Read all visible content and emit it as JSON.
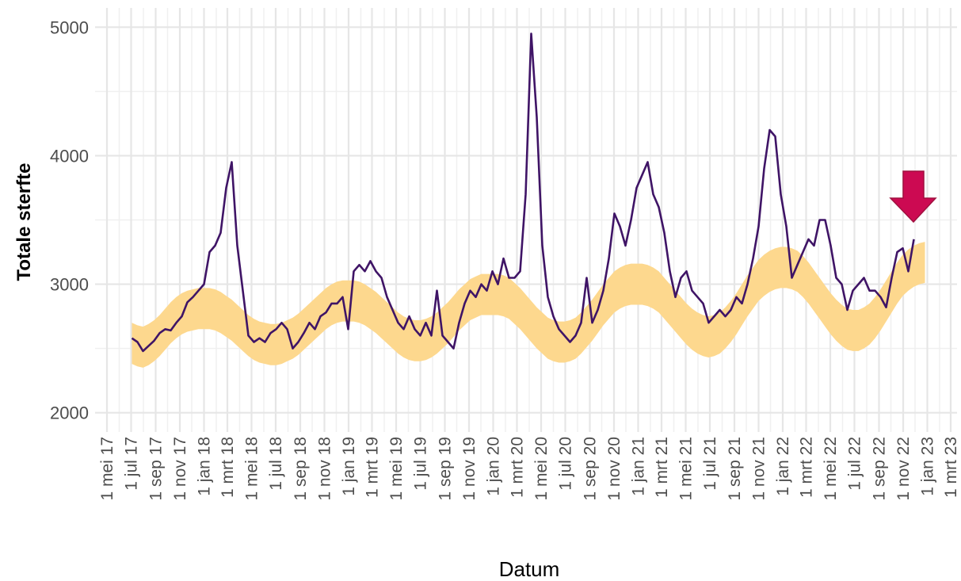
{
  "chart_data": {
    "type": "line",
    "xlabel": "Datum",
    "ylabel": "Totale sterfte",
    "xlim": [
      "2017-04-01",
      "2023-03-17"
    ],
    "ylim": [
      1850,
      5150
    ],
    "yticks": [
      2000,
      3000,
      4000,
      5000
    ],
    "yminor": [
      2500,
      3500,
      4500
    ],
    "grid": true,
    "xticks": [
      {
        "value": "2017-05-01",
        "label": "1 mei 17"
      },
      {
        "value": "2017-07-01",
        "label": "1 jul 17"
      },
      {
        "value": "2017-09-01",
        "label": "1 sep 17"
      },
      {
        "value": "2017-11-01",
        "label": "1 nov 17"
      },
      {
        "value": "2018-01-01",
        "label": "1 jan 18"
      },
      {
        "value": "2018-03-01",
        "label": "1 mrt 18"
      },
      {
        "value": "2018-05-01",
        "label": "1 mei 18"
      },
      {
        "value": "2018-07-01",
        "label": "1 jul 18"
      },
      {
        "value": "2018-09-01",
        "label": "1 sep 18"
      },
      {
        "value": "2018-11-01",
        "label": "1 nov 18"
      },
      {
        "value": "2019-01-01",
        "label": "1 jan 19"
      },
      {
        "value": "2019-03-01",
        "label": "1 mrt 19"
      },
      {
        "value": "2019-05-01",
        "label": "1 mei 19"
      },
      {
        "value": "2019-07-01",
        "label": "1 jul 19"
      },
      {
        "value": "2019-09-01",
        "label": "1 sep 19"
      },
      {
        "value": "2019-11-01",
        "label": "1 nov 19"
      },
      {
        "value": "2020-01-01",
        "label": "1 jan 20"
      },
      {
        "value": "2020-03-01",
        "label": "1 mrt 20"
      },
      {
        "value": "2020-05-01",
        "label": "1 mei 20"
      },
      {
        "value": "2020-07-01",
        "label": "1 jul 20"
      },
      {
        "value": "2020-09-01",
        "label": "1 sep 20"
      },
      {
        "value": "2020-11-01",
        "label": "1 nov 20"
      },
      {
        "value": "2021-01-01",
        "label": "1 jan 21"
      },
      {
        "value": "2021-03-01",
        "label": "1 mrt 21"
      },
      {
        "value": "2021-05-01",
        "label": "1 mei 21"
      },
      {
        "value": "2021-07-01",
        "label": "1 jul 21"
      },
      {
        "value": "2021-09-01",
        "label": "1 sep 21"
      },
      {
        "value": "2021-11-01",
        "label": "1 nov 21"
      },
      {
        "value": "2022-01-01",
        "label": "1 jan 22"
      },
      {
        "value": "2022-03-01",
        "label": "1 mrt 22"
      },
      {
        "value": "2022-05-01",
        "label": "1 mei 22"
      },
      {
        "value": "2022-07-01",
        "label": "1 jul 22"
      },
      {
        "value": "2022-09-01",
        "label": "1 sep 22"
      },
      {
        "value": "2022-11-01",
        "label": "1 nov 22"
      },
      {
        "value": "2023-01-01",
        "label": "1 jan 23"
      },
      {
        "value": "2023-03-01",
        "label": "1 mrt 23"
      }
    ],
    "xminor": [
      "2017-06-01",
      "2017-08-01",
      "2017-10-01",
      "2017-12-01",
      "2018-02-01",
      "2018-04-01",
      "2018-06-01",
      "2018-08-01",
      "2018-10-01",
      "2018-12-01",
      "2019-02-01",
      "2019-04-01",
      "2019-06-01",
      "2019-08-01",
      "2019-10-01",
      "2019-12-01",
      "2020-02-01",
      "2020-04-01",
      "2020-06-01",
      "2020-08-01",
      "2020-10-01",
      "2020-12-01",
      "2021-02-01",
      "2021-04-01",
      "2021-06-01",
      "2021-08-01",
      "2021-10-01",
      "2021-12-01",
      "2022-02-01",
      "2022-04-01",
      "2022-06-01",
      "2022-08-01",
      "2022-10-01",
      "2022-12-01",
      "2023-02-01"
    ],
    "x": [
      "2017-07-03",
      "2017-07-17",
      "2017-07-31",
      "2017-08-14",
      "2017-08-28",
      "2017-09-11",
      "2017-09-25",
      "2017-10-09",
      "2017-10-23",
      "2017-11-06",
      "2017-11-20",
      "2017-12-04",
      "2017-12-18",
      "2018-01-01",
      "2018-01-15",
      "2018-01-29",
      "2018-02-12",
      "2018-02-26",
      "2018-03-12",
      "2018-03-26",
      "2018-04-09",
      "2018-04-23",
      "2018-05-07",
      "2018-05-21",
      "2018-06-04",
      "2018-06-18",
      "2018-07-02",
      "2018-07-16",
      "2018-07-30",
      "2018-08-13",
      "2018-08-27",
      "2018-09-10",
      "2018-09-24",
      "2018-10-08",
      "2018-10-22",
      "2018-11-05",
      "2018-11-19",
      "2018-12-03",
      "2018-12-17",
      "2018-12-31",
      "2019-01-14",
      "2019-01-28",
      "2019-02-11",
      "2019-02-25",
      "2019-03-11",
      "2019-03-25",
      "2019-04-08",
      "2019-04-22",
      "2019-05-06",
      "2019-05-20",
      "2019-06-03",
      "2019-06-17",
      "2019-07-01",
      "2019-07-15",
      "2019-07-29",
      "2019-08-12",
      "2019-08-26",
      "2019-09-09",
      "2019-09-23",
      "2019-10-07",
      "2019-10-21",
      "2019-11-04",
      "2019-11-18",
      "2019-12-02",
      "2019-12-16",
      "2019-12-30",
      "2020-01-13",
      "2020-01-27",
      "2020-02-10",
      "2020-02-24",
      "2020-03-09",
      "2020-03-23",
      "2020-04-06",
      "2020-04-20",
      "2020-05-04",
      "2020-05-18",
      "2020-06-01",
      "2020-06-15",
      "2020-06-29",
      "2020-07-13",
      "2020-07-27",
      "2020-08-10",
      "2020-08-24",
      "2020-09-07",
      "2020-09-21",
      "2020-10-05",
      "2020-10-19",
      "2020-11-02",
      "2020-11-16",
      "2020-11-30",
      "2020-12-14",
      "2020-12-28",
      "2021-01-11",
      "2021-01-25",
      "2021-02-08",
      "2021-02-22",
      "2021-03-08",
      "2021-03-22",
      "2021-04-05",
      "2021-04-19",
      "2021-05-03",
      "2021-05-17",
      "2021-05-31",
      "2021-06-14",
      "2021-06-28",
      "2021-07-12",
      "2021-07-26",
      "2021-08-09",
      "2021-08-23",
      "2021-09-06",
      "2021-09-20",
      "2021-10-04",
      "2021-10-18",
      "2021-11-01",
      "2021-11-15",
      "2021-11-29",
      "2021-12-13",
      "2021-12-27",
      "2022-01-10",
      "2022-01-24",
      "2022-02-07",
      "2022-02-21",
      "2022-03-07",
      "2022-03-21",
      "2022-04-04",
      "2022-04-18",
      "2022-05-02",
      "2022-05-16",
      "2022-05-30",
      "2022-06-13",
      "2022-06-27",
      "2022-07-11",
      "2022-07-25",
      "2022-08-08",
      "2022-08-22",
      "2022-09-05",
      "2022-09-19",
      "2022-10-03",
      "2022-10-17",
      "2022-10-31",
      "2022-11-14",
      "2022-11-28",
      "2022-12-12",
      "2022-12-26"
    ],
    "line": {
      "color": "#3f1466",
      "values": [
        2580,
        2550,
        2480,
        2520,
        2560,
        2620,
        2650,
        2640,
        2700,
        2750,
        2860,
        2900,
        2950,
        3000,
        3250,
        3300,
        3400,
        3750,
        3950,
        3300,
        2950,
        2600,
        2550,
        2580,
        2550,
        2620,
        2650,
        2700,
        2650,
        2500,
        2550,
        2620,
        2700,
        2650,
        2750,
        2780,
        2850,
        2850,
        2900,
        2650,
        3100,
        3150,
        3100,
        3180,
        3100,
        3050,
        2900,
        2800,
        2700,
        2650,
        2750,
        2650,
        2600,
        2700,
        2600,
        2950,
        2600,
        2550,
        2500,
        2700,
        2850,
        2950,
        2900,
        3000,
        2950,
        3100,
        3000,
        3200,
        3050,
        3050,
        3100,
        3700,
        4950,
        4300,
        3300,
        2900,
        2750,
        2650,
        2600,
        2550,
        2600,
        2700,
        3050,
        2700,
        2800,
        2950,
        3200,
        3550,
        3450,
        3300,
        3500,
        3750,
        3850,
        3950,
        3700,
        3600,
        3400,
        3100,
        2900,
        3050,
        3100,
        2950,
        2900,
        2850,
        2700,
        2750,
        2800,
        2750,
        2800,
        2900,
        2850,
        3000,
        3200,
        3450,
        3900,
        4200,
        4150,
        3700,
        3450,
        3050,
        3150,
        3250,
        3350,
        3300,
        3500,
        3500,
        3300,
        3050,
        3000,
        2800,
        2950,
        3000,
        3050,
        2950,
        2950,
        2900,
        2820,
        3050,
        3250,
        3280,
        3100,
        3350,
        null,
        null
      ]
    },
    "band": {
      "color": "#fdd88e",
      "upper": [
        2700,
        2680,
        2670,
        2690,
        2720,
        2760,
        2810,
        2860,
        2900,
        2930,
        2950,
        2960,
        2970,
        2970,
        2970,
        2960,
        2940,
        2910,
        2880,
        2840,
        2800,
        2760,
        2730,
        2710,
        2700,
        2690,
        2690,
        2700,
        2720,
        2740,
        2770,
        2810,
        2850,
        2890,
        2930,
        2970,
        3000,
        3020,
        3030,
        3030,
        3030,
        3020,
        3000,
        2970,
        2940,
        2900,
        2860,
        2820,
        2780,
        2750,
        2730,
        2720,
        2720,
        2730,
        2750,
        2780,
        2820,
        2860,
        2910,
        2960,
        3000,
        3040,
        3060,
        3080,
        3080,
        3080,
        3080,
        3070,
        3050,
        3010,
        2970,
        2920,
        2870,
        2820,
        2780,
        2740,
        2720,
        2710,
        2710,
        2720,
        2740,
        2780,
        2830,
        2880,
        2940,
        3000,
        3050,
        3100,
        3130,
        3150,
        3160,
        3160,
        3160,
        3150,
        3130,
        3100,
        3050,
        3000,
        2950,
        2900,
        2850,
        2810,
        2780,
        2760,
        2750,
        2760,
        2780,
        2820,
        2870,
        2930,
        3000,
        3070,
        3130,
        3190,
        3230,
        3260,
        3280,
        3290,
        3290,
        3280,
        3260,
        3220,
        3170,
        3110,
        3050,
        2990,
        2930,
        2880,
        2840,
        2810,
        2800,
        2800,
        2820,
        2850,
        2900,
        2960,
        3030,
        3100,
        3170,
        3230,
        3270,
        3300,
        3320,
        3330
      ],
      "lower": [
        2380,
        2360,
        2350,
        2370,
        2400,
        2440,
        2490,
        2540,
        2580,
        2610,
        2630,
        2640,
        2650,
        2650,
        2650,
        2640,
        2620,
        2590,
        2560,
        2520,
        2480,
        2440,
        2410,
        2390,
        2380,
        2370,
        2370,
        2380,
        2400,
        2420,
        2450,
        2490,
        2530,
        2570,
        2610,
        2650,
        2680,
        2700,
        2710,
        2710,
        2710,
        2700,
        2680,
        2650,
        2620,
        2580,
        2540,
        2500,
        2460,
        2430,
        2410,
        2400,
        2400,
        2410,
        2430,
        2460,
        2500,
        2540,
        2590,
        2640,
        2680,
        2720,
        2740,
        2760,
        2760,
        2760,
        2760,
        2750,
        2730,
        2690,
        2650,
        2600,
        2550,
        2500,
        2460,
        2420,
        2400,
        2390,
        2390,
        2400,
        2420,
        2460,
        2510,
        2560,
        2620,
        2680,
        2730,
        2780,
        2810,
        2830,
        2840,
        2840,
        2840,
        2830,
        2810,
        2780,
        2730,
        2680,
        2630,
        2580,
        2530,
        2490,
        2460,
        2440,
        2430,
        2440,
        2460,
        2500,
        2550,
        2610,
        2680,
        2750,
        2810,
        2870,
        2910,
        2940,
        2960,
        2970,
        2970,
        2960,
        2940,
        2900,
        2850,
        2790,
        2730,
        2670,
        2610,
        2560,
        2520,
        2490,
        2480,
        2480,
        2500,
        2530,
        2580,
        2640,
        2710,
        2780,
        2850,
        2910,
        2950,
        2980,
        3000,
        3010
      ]
    }
  }
}
